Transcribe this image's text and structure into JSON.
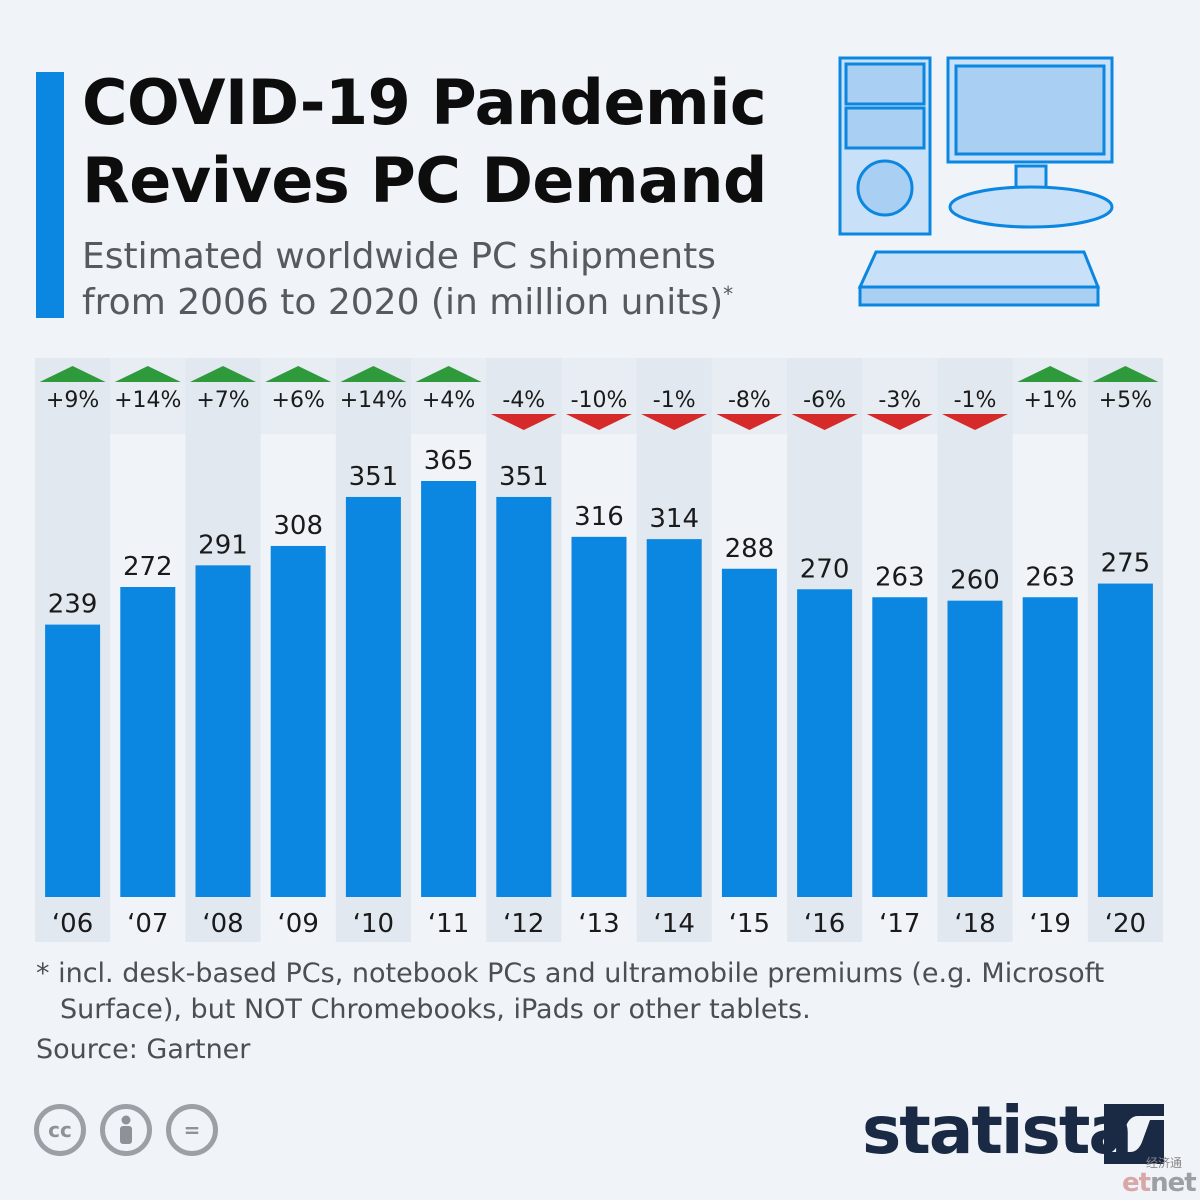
{
  "header": {
    "title": "COVID-19 Pandemic Revives PC Demand",
    "subtitle": "Estimated worldwide PC shipments from 2006 to 2020 (in million units)",
    "subtitle_mark": "*"
  },
  "chart_data": {
    "type": "bar",
    "title": "COVID-19 Pandemic Revives PC Demand",
    "subtitle": "Estimated worldwide PC shipments from 2006 to 2020 (in million units)*",
    "categories": [
      "‘06",
      "‘07",
      "‘08",
      "‘09",
      "‘10",
      "‘11",
      "‘12",
      "‘13",
      "‘14",
      "‘15",
      "‘16",
      "‘17",
      "‘18",
      "‘19",
      "‘20"
    ],
    "values": [
      239,
      272,
      291,
      308,
      351,
      365,
      351,
      316,
      314,
      288,
      270,
      263,
      260,
      263,
      275
    ],
    "changes": [
      "+9%",
      "+14%",
      "+7%",
      "+6%",
      "+14%",
      "+4%",
      "-4%",
      "-10%",
      "-1%",
      "-8%",
      "-6%",
      "-3%",
      "-1%",
      "+1%",
      "+5%"
    ],
    "xlabel": "",
    "ylabel": "",
    "ylim": [
      0,
      365
    ],
    "grid": false,
    "colors": {
      "bar": "#0b86e1",
      "up": "#2e9a3c",
      "down": "#d62a2a",
      "column_shade": "#e1e8f0"
    }
  },
  "footer": {
    "footnote": "* incl. desk-based PCs, notebook PCs and ultramobile premiums (e.g. Microsoft Surface), but NOT Chromebooks, iPads or other tablets.",
    "source": "Source: Gartner",
    "license_icons": [
      "cc-icon",
      "person-icon",
      "equals-icon"
    ],
    "license_labels": [
      "cc",
      "",
      "="
    ],
    "brand": "statista",
    "watermark_cn": "经济通",
    "watermark_prefix": "et",
    "watermark_suffix": "net"
  }
}
